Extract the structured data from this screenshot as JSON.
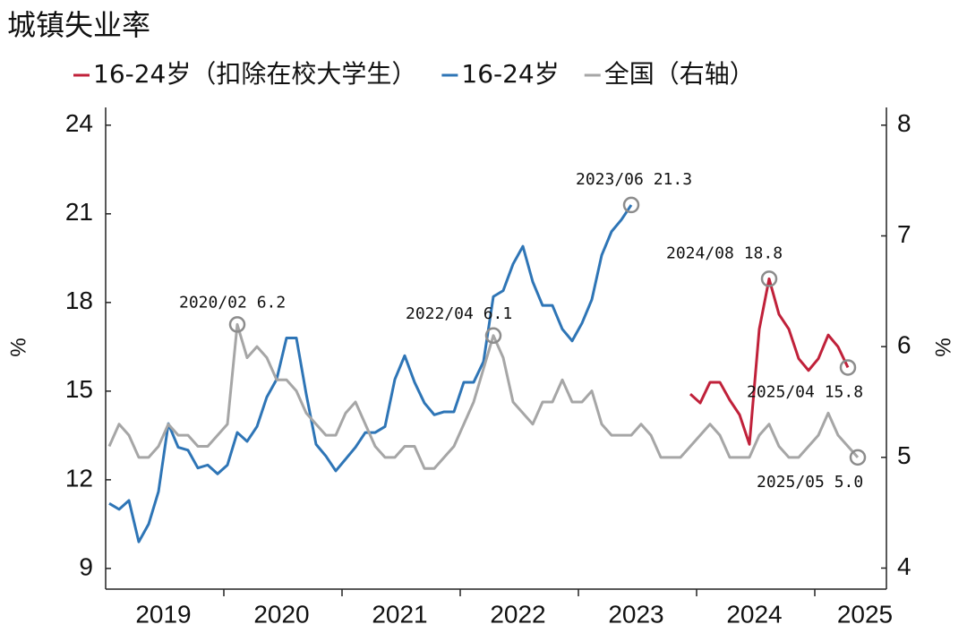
{
  "chart_data": {
    "type": "line",
    "title": "城镇失业率",
    "x": [
      "2019/01",
      "2019/02",
      "2019/03",
      "2019/04",
      "2019/05",
      "2019/06",
      "2019/07",
      "2019/08",
      "2019/09",
      "2019/10",
      "2019/11",
      "2019/12",
      "2020/01",
      "2020/02",
      "2020/03",
      "2020/04",
      "2020/05",
      "2020/06",
      "2020/07",
      "2020/08",
      "2020/09",
      "2020/10",
      "2020/11",
      "2020/12",
      "2021/01",
      "2021/02",
      "2021/03",
      "2021/04",
      "2021/05",
      "2021/06",
      "2021/07",
      "2021/08",
      "2021/09",
      "2021/10",
      "2021/11",
      "2021/12",
      "2022/01",
      "2022/02",
      "2022/03",
      "2022/04",
      "2022/05",
      "2022/06",
      "2022/07",
      "2022/08",
      "2022/09",
      "2022/10",
      "2022/11",
      "2022/12",
      "2023/01",
      "2023/02",
      "2023/03",
      "2023/04",
      "2023/05",
      "2023/06",
      "2023/07",
      "2023/08",
      "2023/09",
      "2023/10",
      "2023/11",
      "2023/12",
      "2024/01",
      "2024/02",
      "2024/03",
      "2024/04",
      "2024/05",
      "2024/06",
      "2024/07",
      "2024/08",
      "2024/09",
      "2024/10",
      "2024/11",
      "2024/12",
      "2025/01",
      "2025/02",
      "2025/03",
      "2025/04",
      "2025/05"
    ],
    "xticks": [
      "2019",
      "2020",
      "2021",
      "2022",
      "2023",
      "2024",
      "2025"
    ],
    "series": [
      {
        "name": "16-24岁（扣除在校大学生）",
        "color": "#c0213a",
        "axis": "y",
        "values": [
          null,
          null,
          null,
          null,
          null,
          null,
          null,
          null,
          null,
          null,
          null,
          null,
          null,
          null,
          null,
          null,
          null,
          null,
          null,
          null,
          null,
          null,
          null,
          null,
          null,
          null,
          null,
          null,
          null,
          null,
          null,
          null,
          null,
          null,
          null,
          null,
          null,
          null,
          null,
          null,
          null,
          null,
          null,
          null,
          null,
          null,
          null,
          null,
          null,
          null,
          null,
          null,
          null,
          null,
          null,
          null,
          null,
          null,
          null,
          14.9,
          14.6,
          15.3,
          15.3,
          14.7,
          14.2,
          13.2,
          17.1,
          18.8,
          17.6,
          17.1,
          16.1,
          15.7,
          16.1,
          16.9,
          16.5,
          15.8,
          null
        ]
      },
      {
        "name": "16-24岁",
        "color": "#2e75b6",
        "axis": "y",
        "values": [
          11.2,
          11.0,
          11.3,
          9.9,
          10.5,
          11.6,
          13.9,
          13.1,
          13.0,
          12.4,
          12.5,
          12.2,
          12.5,
          13.6,
          13.3,
          13.8,
          14.8,
          15.4,
          16.8,
          16.8,
          14.9,
          13.2,
          12.8,
          12.3,
          12.7,
          13.1,
          13.6,
          13.6,
          13.8,
          15.4,
          16.2,
          15.3,
          14.6,
          14.2,
          14.3,
          14.3,
          15.3,
          15.3,
          16.0,
          18.2,
          18.4,
          19.3,
          19.9,
          18.7,
          17.9,
          17.9,
          17.1,
          16.7,
          17.3,
          18.1,
          19.6,
          20.4,
          20.8,
          21.3,
          null,
          null,
          null,
          null,
          null,
          null,
          null,
          null,
          null,
          null,
          null,
          null,
          null,
          null,
          null,
          null,
          null,
          null,
          null,
          null,
          null,
          null,
          null
        ]
      },
      {
        "name": "全国（右轴）",
        "color": "#a6a6a6",
        "axis": "y2",
        "values": [
          5.1,
          5.3,
          5.2,
          5.0,
          5.0,
          5.1,
          5.3,
          5.2,
          5.2,
          5.1,
          5.1,
          5.2,
          5.3,
          6.2,
          5.9,
          6.0,
          5.9,
          5.7,
          5.7,
          5.6,
          5.4,
          5.3,
          5.2,
          5.2,
          5.4,
          5.5,
          5.3,
          5.1,
          5.0,
          5.0,
          5.1,
          5.1,
          4.9,
          4.9,
          5.0,
          5.1,
          5.3,
          5.5,
          5.8,
          6.1,
          5.9,
          5.5,
          5.4,
          5.3,
          5.5,
          5.5,
          5.7,
          5.5,
          5.5,
          5.6,
          5.3,
          5.2,
          5.2,
          5.2,
          5.3,
          5.2,
          5.0,
          5.0,
          5.0,
          5.1,
          5.2,
          5.3,
          5.2,
          5.0,
          5.0,
          5.0,
          5.2,
          5.3,
          5.1,
          5.0,
          5.0,
          5.1,
          5.2,
          5.4,
          5.2,
          5.1,
          5.0
        ]
      }
    ],
    "ylim": [
      8.3,
      24.6
    ],
    "yticks": [
      9,
      12,
      15,
      18,
      21,
      24
    ],
    "ylabel": "%",
    "y2lim": [
      3.81,
      8.16
    ],
    "y2ticks": [
      4,
      5,
      6,
      7,
      8
    ],
    "y2label": "%",
    "annotations": [
      {
        "x": "2020/02",
        "series": "全国（右轴）",
        "text": "2020/02  6.2"
      },
      {
        "x": "2022/04",
        "series": "全国（右轴）",
        "text": "2022/04  6.1"
      },
      {
        "x": "2023/06",
        "series": "16-24岁",
        "text": "2023/06  21.3"
      },
      {
        "x": "2024/08",
        "series": "16-24岁（扣除在校大学生）",
        "text": "2024/08  18.8"
      },
      {
        "x": "2025/04",
        "series": "16-24岁（扣除在校大学生）",
        "text": "2025/04  15.8"
      },
      {
        "x": "2025/05",
        "series": "全国（右轴）",
        "text": "2025/05  5.0"
      }
    ]
  }
}
